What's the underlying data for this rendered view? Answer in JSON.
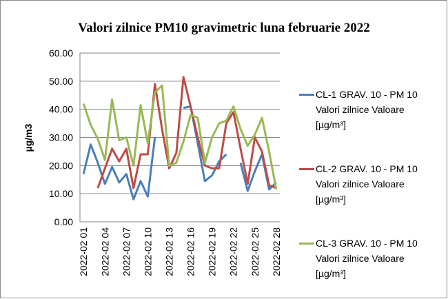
{
  "chart_data": {
    "type": "line",
    "title": "Valori zilnice PM10 gravimetric luna februarie 2022",
    "y_label": "µg/m3",
    "categories": [
      "2022-02 01",
      null,
      null,
      "2022-02 04",
      null,
      null,
      "2022-02 07",
      null,
      null,
      "2022-02 10",
      null,
      null,
      "2022-02 13",
      null,
      null,
      "2022-02 16",
      null,
      null,
      "2022-02 19",
      null,
      null,
      "2022-02 22",
      null,
      null,
      "2022-02 25",
      null,
      null,
      "2022-02 28"
    ],
    "series": [
      {
        "name": "CL-1 GRAV. 10 - PM 10 Valori zilnice Valoare [µg/m³]",
        "color": "#4a7ebb",
        "values": [
          17,
          27.5,
          21,
          13.5,
          19.5,
          14,
          17,
          8,
          14.5,
          9,
          30,
          null,
          null,
          null,
          40.5,
          41,
          28,
          14.5,
          16.5,
          21.5,
          24,
          null,
          21,
          11,
          18,
          24,
          11.5,
          14
        ]
      },
      {
        "name": "CL-2 GRAV. 10 - PM 10 Valori zilnice Valoare [µg/m³]",
        "color": "#be4b48",
        "values": [
          null,
          null,
          12,
          19,
          26,
          21.5,
          26,
          12,
          24,
          24,
          49,
          33,
          19,
          24.5,
          51.5,
          41,
          30,
          20,
          19,
          19,
          35,
          39,
          26,
          13.5,
          30,
          25,
          13,
          12
        ]
      },
      {
        "name": "CL-3 GRAV. 10 - PM 10 Valori zilnice Valoare [µg/m³]",
        "color": "#98b954",
        "values": [
          42,
          34.5,
          29.5,
          22,
          43.5,
          29,
          30,
          20,
          41.5,
          28,
          46,
          48.5,
          20,
          21,
          28.5,
          38,
          37,
          21,
          30,
          35,
          36,
          41,
          33,
          27,
          31,
          37,
          25,
          11.5
        ]
      }
    ],
    "ylim": [
      0,
      60
    ],
    "yticks": [
      {
        "value": 0,
        "label": "0.00"
      },
      {
        "value": 10,
        "label": "10.00"
      },
      {
        "value": 20,
        "label": "20.00"
      },
      {
        "value": 30,
        "label": "30.00"
      },
      {
        "value": 40,
        "label": "40.00"
      },
      {
        "value": 50,
        "label": "50.00"
      },
      {
        "value": 60,
        "label": "60.00"
      }
    ],
    "grid": true,
    "legend": "right"
  }
}
